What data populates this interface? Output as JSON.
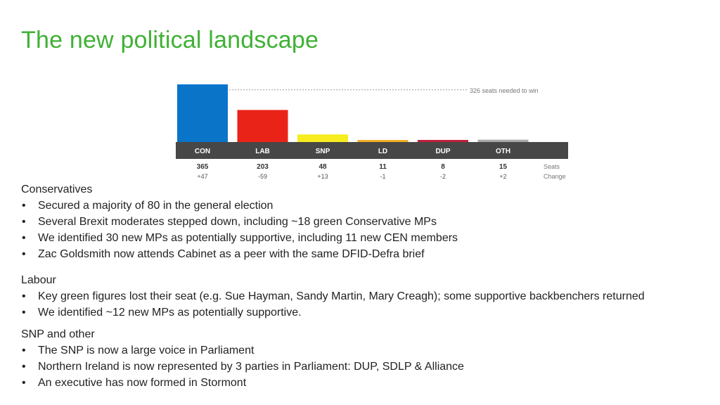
{
  "slide": {
    "title": "The new political landscape"
  },
  "chart_data": {
    "type": "bar",
    "title": "",
    "categories": [
      "CON",
      "LAB",
      "SNP",
      "LD",
      "DUP",
      "OTH"
    ],
    "values": [
      365,
      203,
      48,
      11,
      8,
      15
    ],
    "changes": [
      "+47",
      "-59",
      "+13",
      "-1",
      "-2",
      "+2"
    ],
    "colors": [
      "#0a74c9",
      "#ea2318",
      "#f6ec1e",
      "#f0ae25",
      "#c1203a",
      "#a9a9a9"
    ],
    "category_band_color": "#474747",
    "threshold": {
      "value": 326,
      "label": "326 seats needed to win"
    },
    "row_labels": {
      "seats": "Seats",
      "change": "Change"
    },
    "ylim": [
      0,
      365
    ],
    "grid": false,
    "legend": "none"
  },
  "sections": [
    {
      "heading": "Conservatives",
      "bullets": [
        "Secured a majority of 80 in the general election",
        "Several Brexit moderates stepped down, including ~18 green Conservative MPs",
        "We identified 30 new MPs as potentially supportive, including 11 new CEN members",
        "Zac Goldsmith now attends Cabinet as a peer with the same DFID-Defra brief"
      ]
    },
    {
      "heading": "Labour",
      "bullets": [
        "Key green figures lost their seat (e.g. Sue Hayman, Sandy Martin, Mary Creagh); some supportive backbenchers returned",
        "We identified ~12 new MPs as potentially supportive."
      ]
    },
    {
      "heading": "SNP and other",
      "bullets": [
        "The SNP is now a large voice in Parliament",
        "Northern Ireland is now represented by 3 parties in Parliament: DUP, SDLP & Alliance",
        "An executive has now formed in Stormont"
      ]
    }
  ]
}
